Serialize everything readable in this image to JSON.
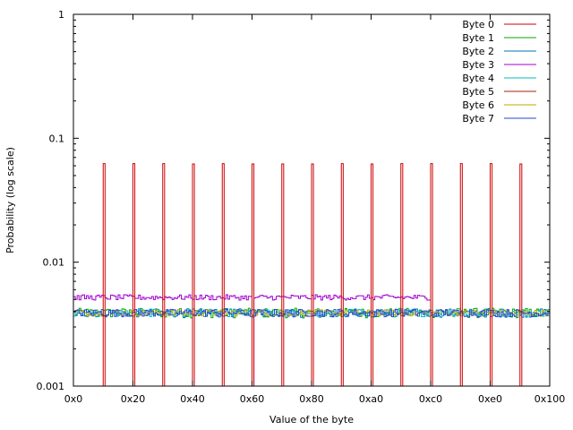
{
  "chart_data": {
    "type": "line",
    "style": "steps",
    "xlabel": "Value of the byte",
    "ylabel": "Probability (log scale)",
    "xlim": [
      0,
      256
    ],
    "ylim": [
      0.001,
      1
    ],
    "yscale": "log",
    "grid": false,
    "legend_position": "top-right",
    "x_ticks": [
      {
        "value": 0,
        "label": "0x0"
      },
      {
        "value": 32,
        "label": "0x20"
      },
      {
        "value": 64,
        "label": "0x40"
      },
      {
        "value": 96,
        "label": "0x60"
      },
      {
        "value": 128,
        "label": "0x80"
      },
      {
        "value": 160,
        "label": "0xa0"
      },
      {
        "value": 192,
        "label": "0xc0"
      },
      {
        "value": 224,
        "label": "0xe0"
      },
      {
        "value": 256,
        "label": "0x100"
      }
    ],
    "y_ticks": [
      {
        "value": 0.001,
        "label": "0.001"
      },
      {
        "value": 0.01,
        "label": "0.01"
      },
      {
        "value": 0.1,
        "label": "0.1"
      },
      {
        "value": 1,
        "label": "1"
      }
    ],
    "series": [
      {
        "name": "Byte 0",
        "color": "#cc0000",
        "pattern": "spikes",
        "spikes": [
          {
            "x": 16,
            "y": 0.0625
          },
          {
            "x": 32,
            "y": 0.0625
          },
          {
            "x": 48,
            "y": 0.0625
          },
          {
            "x": 64,
            "y": 0.062
          },
          {
            "x": 80,
            "y": 0.0625
          },
          {
            "x": 96,
            "y": 0.062
          },
          {
            "x": 112,
            "y": 0.062
          },
          {
            "x": 128,
            "y": 0.062
          },
          {
            "x": 144,
            "y": 0.0625
          },
          {
            "x": 160,
            "y": 0.062
          },
          {
            "x": 176,
            "y": 0.0625
          },
          {
            "x": 192,
            "y": 0.0625
          },
          {
            "x": 208,
            "y": 0.0625
          },
          {
            "x": 224,
            "y": 0.0625
          },
          {
            "x": 240,
            "y": 0.062
          }
        ]
      },
      {
        "name": "Byte 1",
        "color": "#00aa00",
        "pattern": "noise",
        "range": [
          0,
          256
        ],
        "mean": 0.0039,
        "jitter": 0.09
      },
      {
        "name": "Byte 2",
        "color": "#0077bb",
        "pattern": "noise",
        "range": [
          0,
          256
        ],
        "mean": 0.0039,
        "jitter": 0.08
      },
      {
        "name": "Byte 3",
        "color": "#a000d0",
        "pattern": "noise",
        "range": [
          0,
          192
        ],
        "mean": 0.0052,
        "jitter": 0.05,
        "dropouts": [
          96,
          192
        ]
      },
      {
        "name": "Byte 4",
        "color": "#00bbbb",
        "pattern": "noise",
        "range": [
          0,
          256
        ],
        "mean": 0.0039,
        "jitter": 0.07
      },
      {
        "name": "Byte 5",
        "color": "#aa2200",
        "pattern": "hidden"
      },
      {
        "name": "Byte 6",
        "color": "#bbaa00",
        "pattern": "noise",
        "range": [
          0,
          256
        ],
        "mean": 0.0039,
        "jitter": 0.06
      },
      {
        "name": "Byte 7",
        "color": "#2244dd",
        "pattern": "noise",
        "range": [
          0,
          256
        ],
        "mean": 0.0039,
        "jitter": 0.07
      }
    ]
  }
}
